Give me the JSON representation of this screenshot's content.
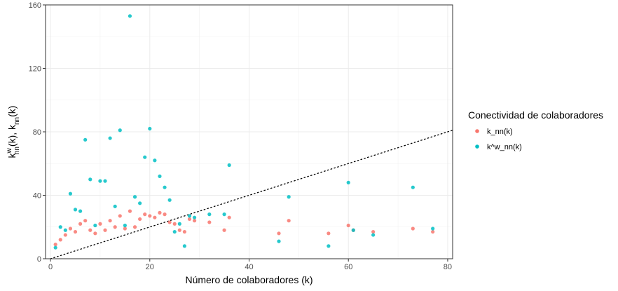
{
  "chart_data": {
    "type": "scatter",
    "title": "",
    "xlabel": "Número de colaboradores (k)",
    "ylabel": {
      "base1": "k",
      "sup1": "w",
      "sub1": "nn",
      "mid": "(k), k",
      "sub2": "nn",
      "end": "(k)"
    },
    "xlim": [
      -1,
      81
    ],
    "ylim": [
      0,
      160
    ],
    "xticks": [
      "0",
      "20",
      "40",
      "60",
      "80"
    ],
    "yticks": [
      "0",
      "40",
      "80",
      "120",
      "160"
    ],
    "grid": true,
    "legend": {
      "title": "Conectividad de colaboradores",
      "position": "right"
    },
    "reference_line": {
      "style": "dotted",
      "slope": 1,
      "intercept": 0
    },
    "series": [
      {
        "name": "k_nn(k)",
        "color": "#F8766D",
        "points": [
          [
            1,
            9
          ],
          [
            2,
            12
          ],
          [
            3,
            15
          ],
          [
            4,
            19
          ],
          [
            5,
            17
          ],
          [
            6,
            22
          ],
          [
            7,
            24
          ],
          [
            8,
            18
          ],
          [
            9,
            16
          ],
          [
            10,
            22
          ],
          [
            11,
            18
          ],
          [
            12,
            24
          ],
          [
            13,
            20
          ],
          [
            14,
            27
          ],
          [
            15,
            19
          ],
          [
            16,
            30
          ],
          [
            17,
            20
          ],
          [
            18,
            25
          ],
          [
            19,
            28
          ],
          [
            20,
            27
          ],
          [
            21,
            26
          ],
          [
            22,
            29
          ],
          [
            23,
            28
          ],
          [
            24,
            23
          ],
          [
            25,
            22
          ],
          [
            26,
            18
          ],
          [
            27,
            17
          ],
          [
            28,
            25
          ],
          [
            29,
            24
          ],
          [
            32,
            23
          ],
          [
            35,
            18
          ],
          [
            36,
            26
          ],
          [
            46,
            16
          ],
          [
            48,
            24
          ],
          [
            56,
            16
          ],
          [
            60,
            21
          ],
          [
            61,
            18
          ],
          [
            65,
            17
          ],
          [
            73,
            19
          ],
          [
            77,
            17
          ]
        ]
      },
      {
        "name": "k^w_nn(k)",
        "color": "#00BFC4",
        "points": [
          [
            1,
            7
          ],
          [
            2,
            20
          ],
          [
            3,
            18
          ],
          [
            4,
            41
          ],
          [
            5,
            31
          ],
          [
            6,
            30
          ],
          [
            7,
            75
          ],
          [
            8,
            50
          ],
          [
            9,
            21
          ],
          [
            10,
            49
          ],
          [
            11,
            49
          ],
          [
            12,
            76
          ],
          [
            13,
            33
          ],
          [
            14,
            81
          ],
          [
            15,
            21
          ],
          [
            16,
            153
          ],
          [
            17,
            39
          ],
          [
            18,
            35
          ],
          [
            19,
            64
          ],
          [
            20,
            82
          ],
          [
            21,
            62
          ],
          [
            22,
            52
          ],
          [
            23,
            45
          ],
          [
            24,
            37
          ],
          [
            25,
            17
          ],
          [
            26,
            22
          ],
          [
            27,
            8
          ],
          [
            28,
            27
          ],
          [
            29,
            26
          ],
          [
            32,
            28
          ],
          [
            35,
            28
          ],
          [
            36,
            59
          ],
          [
            46,
            11
          ],
          [
            48,
            39
          ],
          [
            56,
            8
          ],
          [
            60,
            48
          ],
          [
            61,
            18
          ],
          [
            65,
            15
          ],
          [
            73,
            45
          ],
          [
            77,
            19
          ]
        ]
      }
    ]
  }
}
